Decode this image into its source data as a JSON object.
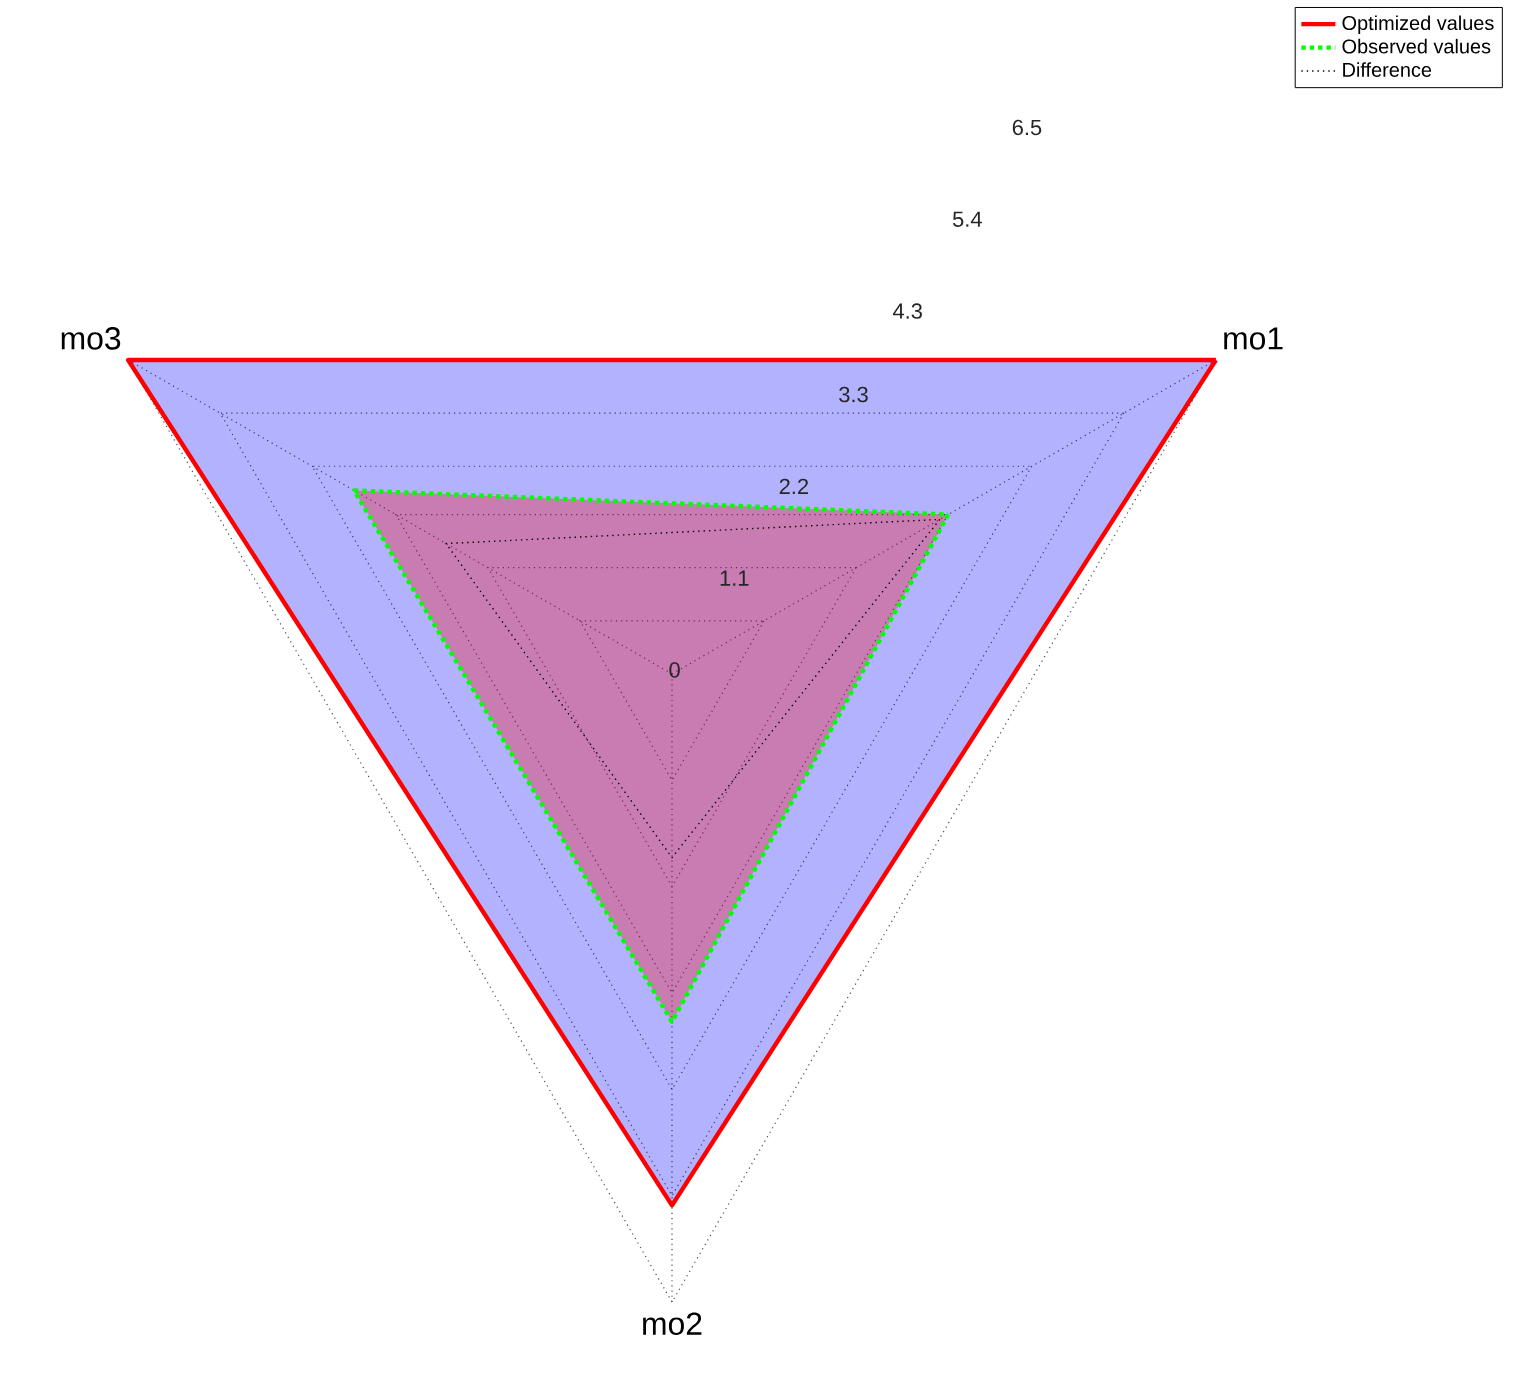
{
  "chart_data": {
    "type": "radar",
    "categories": [
      "mo1",
      "mo2",
      "mo3"
    ],
    "series": [
      {
        "name": "Optimized values",
        "color": "#ff0000",
        "line_style": "solid",
        "values": [
          6.5,
          5.5,
          6.5
        ]
      },
      {
        "name": "Observed values",
        "color": "#00ff00",
        "line_style": "dotted",
        "values": [
          3.3,
          3.6,
          3.8
        ]
      },
      {
        "name": "Difference",
        "color": "#000000",
        "line_style": "dotted",
        "values": [
          3.2,
          1.9,
          2.7
        ]
      }
    ],
    "ylim": [
      0,
      6.5
    ],
    "yticks": [
      0,
      1.1,
      2.2,
      3.3,
      4.3,
      5.4,
      6.5
    ],
    "grid": true,
    "legend": "top right"
  }
}
